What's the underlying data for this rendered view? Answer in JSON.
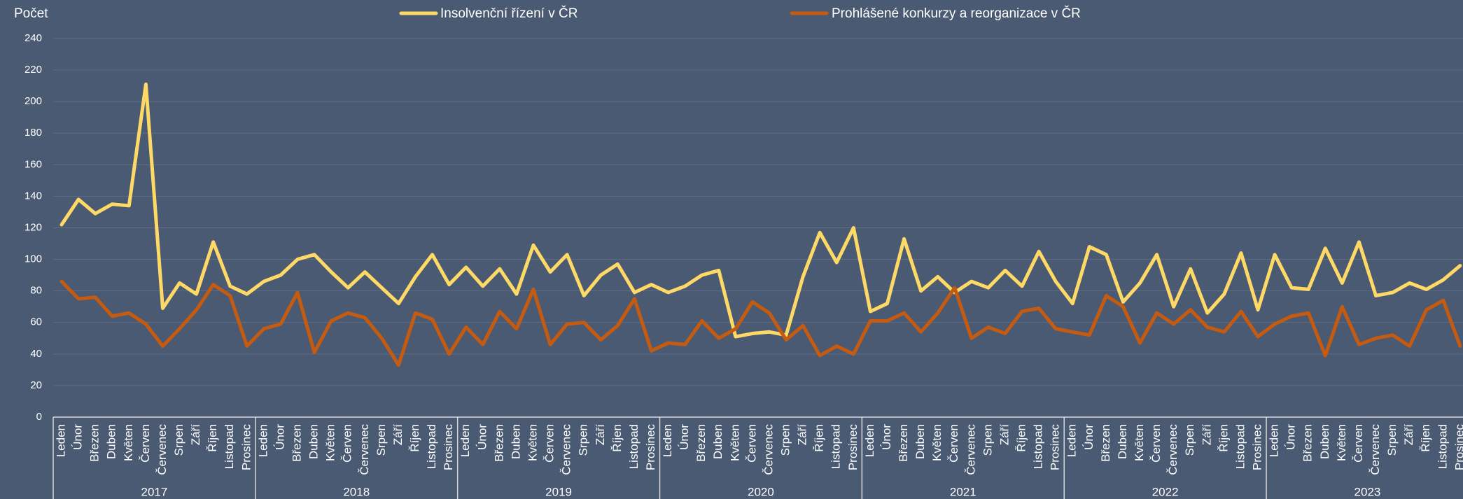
{
  "chart_data": {
    "type": "line",
    "y_axis_label": "Počet",
    "categories": [
      "Leden",
      "Únor",
      "Březen",
      "Duben",
      "Květen",
      "Červen",
      "Červenec",
      "Srpen",
      "Září",
      "Říjen",
      "Listopad",
      "Prosinec",
      "Leden",
      "Únor",
      "Březen",
      "Duben",
      "Květen",
      "Červen",
      "Červenec",
      "Srpen",
      "Září",
      "Říjen",
      "Listopad",
      "Prosinec",
      "Leden",
      "Únor",
      "Březen",
      "Duben",
      "Květen",
      "Červen",
      "Červenec",
      "Srpen",
      "Září",
      "Říjen",
      "Listopad",
      "Prosinec",
      "Leden",
      "Únor",
      "Březen",
      "Duben",
      "Květen",
      "Červen",
      "Červenec",
      "Srpen",
      "Září",
      "Říjen",
      "Listopad",
      "Prosinec",
      "Leden",
      "Únor",
      "Březen",
      "Duben",
      "Květen",
      "Červen",
      "Červenec",
      "Srpen",
      "Září",
      "Říjen",
      "Listopad",
      "Prosinec",
      "Leden",
      "Únor",
      "Březen",
      "Duben",
      "Květen",
      "Červen",
      "Červenec",
      "Srpen",
      "Září",
      "Říjen",
      "Listopad",
      "Prosinec",
      "Leden",
      "Únor",
      "Březen",
      "Duben",
      "Květen",
      "Červen",
      "Červenec",
      "Srpen",
      "Září",
      "Říjen",
      "Listopad",
      "Prosinec"
    ],
    "category_groups": [
      "2017",
      "2018",
      "2019",
      "2020",
      "2021",
      "2022",
      "2023"
    ],
    "series": [
      {
        "name": "Insolvenční řízení v ČR",
        "color": "#ffd966",
        "values": [
          122,
          138,
          129,
          135,
          134,
          211,
          69,
          85,
          78,
          111,
          83,
          78,
          86,
          90,
          100,
          103,
          92,
          82,
          92,
          82,
          72,
          89,
          103,
          84,
          95,
          83,
          94,
          78,
          109,
          92,
          103,
          77,
          90,
          97,
          79,
          84,
          79,
          83,
          90,
          93,
          51,
          53,
          54,
          52,
          89,
          117,
          98,
          120,
          67,
          72,
          113,
          80,
          89,
          79,
          86,
          82,
          93,
          83,
          105,
          86,
          72,
          108,
          103,
          73,
          85,
          103,
          70,
          94,
          66,
          78,
          104,
          68,
          103,
          82,
          81,
          107,
          85,
          111,
          77,
          79,
          85,
          81,
          87,
          96
        ]
      },
      {
        "name": "Prohlášené konkurzy a reorganizace v ČR",
        "color": "#c55a11",
        "values": [
          86,
          75,
          76,
          64,
          66,
          59,
          45,
          56,
          68,
          84,
          77,
          45,
          56,
          59,
          79,
          41,
          61,
          66,
          63,
          50,
          33,
          66,
          62,
          40,
          57,
          46,
          67,
          56,
          81,
          46,
          59,
          60,
          49,
          58,
          75,
          42,
          47,
          46,
          61,
          50,
          56,
          73,
          66,
          49,
          58,
          39,
          45,
          40,
          61,
          61,
          66,
          54,
          66,
          82,
          50,
          57,
          53,
          67,
          69,
          56,
          54,
          52,
          77,
          70,
          47,
          66,
          59,
          68,
          57,
          54,
          67,
          51,
          59,
          64,
          66,
          39,
          70,
          46,
          50,
          52,
          45,
          68,
          74,
          45
        ]
      }
    ],
    "ylim": [
      0,
      240
    ],
    "yticks": [
      0,
      20,
      40,
      60,
      80,
      100,
      120,
      140,
      160,
      180,
      200,
      220,
      240
    ],
    "grid": true,
    "legend": "top"
  }
}
